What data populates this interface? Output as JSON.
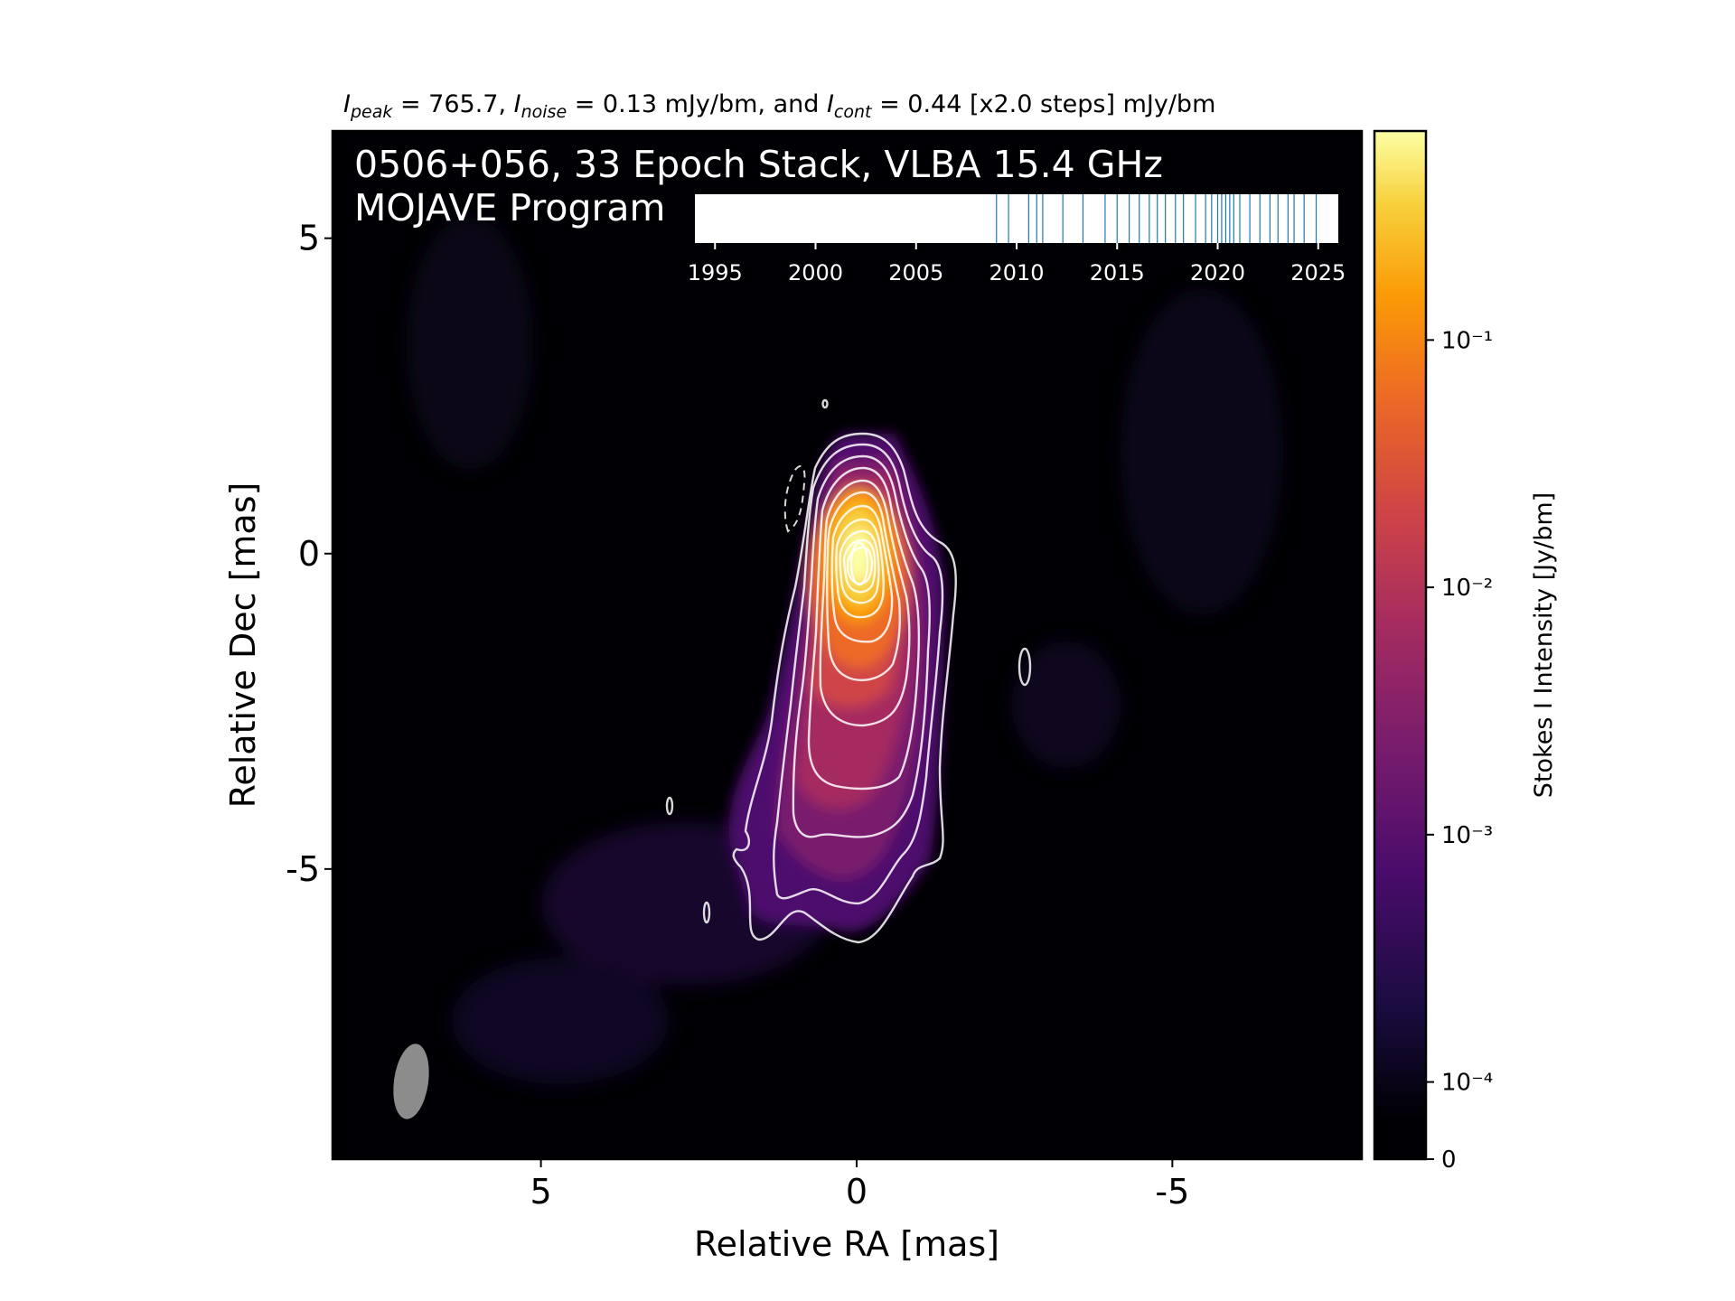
{
  "header": {
    "peak_label": "I",
    "peak_sub": "peak",
    "peak_value": " = 765.7, ",
    "noise_label": "I",
    "noise_sub": "noise",
    "noise_value": " = 0.13 mJy/bm, and ",
    "cont_label": "I",
    "cont_sub": "cont",
    "cont_value": " = 0.44 [x2.0 steps] mJy/bm"
  },
  "chart_data": {
    "type": "heatmap",
    "title_line1": "0506+056, 33 Epoch Stack, VLBA 15.4 GHz",
    "title_line2": "MOJAVE Program",
    "xlabel": "Relative RA [mas]",
    "ylabel": "Relative Dec [mas]",
    "xlim": [
      8.3,
      -8.0
    ],
    "ylim": [
      -9.6,
      6.7
    ],
    "xticks": [
      5,
      0,
      -5
    ],
    "xtick_labels": [
      "5",
      "0",
      "-5"
    ],
    "yticks": [
      5,
      0,
      -5
    ],
    "ytick_labels": [
      "5",
      "0",
      "-5"
    ],
    "colormap": "inferno",
    "colorbar": {
      "label": "Stokes I Intensity [Jy/bm]",
      "scale": "log",
      "ticks": [
        0.1,
        0.01,
        0.001,
        0.0001,
        0
      ],
      "tick_labels": [
        "10⁻¹",
        "10⁻²",
        "10⁻³",
        "10⁻⁴",
        "0"
      ]
    },
    "peak_position": [
      0,
      0
    ],
    "beam": {
      "major_mas": 1.2,
      "minor_mas": 0.55,
      "pa_deg": -5,
      "center": [
        7.1,
        -8.5
      ],
      "color": "#8c8c8c"
    },
    "epochs": {
      "axis_ticks": [
        1995,
        2000,
        2005,
        2010,
        2015,
        2020,
        2025
      ],
      "axis_tick_labels": [
        "1995",
        "2000",
        "2005",
        "2010",
        "2015",
        "2020",
        "2025"
      ],
      "xlim": [
        1994.0,
        2026.0
      ],
      "line_color": "#1f77b4",
      "years": [
        2009.0,
        2009.6,
        2010.6,
        2011.0,
        2011.3,
        2012.3,
        2013.3,
        2014.4,
        2015.0,
        2015.6,
        2016.1,
        2016.6,
        2017.0,
        2017.4,
        2017.9,
        2018.3,
        2018.9,
        2019.4,
        2019.7,
        2020.0,
        2020.2,
        2020.4,
        2020.6,
        2020.8,
        2021.1,
        2021.6,
        2022.1,
        2022.6,
        2023.0,
        2023.5,
        2023.8,
        2024.3,
        2024.9
      ]
    }
  }
}
